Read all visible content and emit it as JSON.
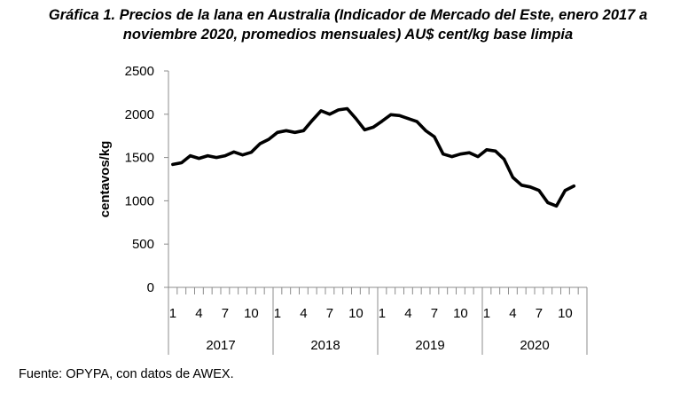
{
  "title_line1": "Gráfica 1. Precios de la lana en Australia (Indicador de Mercado del Este, enero 2017 a",
  "title_line2": "noviembre 2020, promedios mensuales) AU$ cent/kg base limpia",
  "source": "Fuente: OPYPA, con datos de AWEX.",
  "chart_data": {
    "type": "line",
    "ylabel": "centavos/kg",
    "ylim": [
      0,
      2500
    ],
    "yticks": [
      0,
      500,
      1000,
      1500,
      2000,
      2500
    ],
    "grid": false,
    "legend": "none",
    "line_color": "#000000",
    "month_tick_labels": [
      "1",
      "4",
      "7",
      "10"
    ],
    "years": [
      "2017",
      "2018",
      "2019",
      "2020"
    ],
    "months_per_year": 12,
    "series": [
      {
        "values": [
          1420,
          1440,
          1520,
          1490,
          1520,
          1500,
          1520,
          1565,
          1530,
          1560,
          1660,
          1710,
          1790,
          1810,
          1790,
          1810,
          1930,
          2040,
          2000,
          2050,
          2065,
          1950,
          1820,
          1850,
          1920,
          1995,
          1985,
          1950,
          1915,
          1810,
          1740,
          1540,
          1510,
          1540,
          1555,
          1510,
          1590,
          1575,
          1480,
          1270,
          1180,
          1160,
          1120,
          980,
          940,
          1120,
          1170
        ]
      }
    ]
  }
}
